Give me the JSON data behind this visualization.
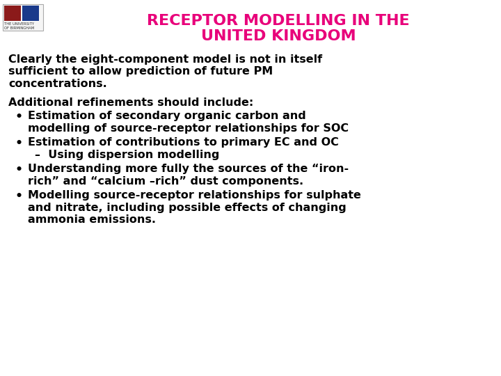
{
  "title_line1": "RECEPTOR MODELLING IN THE",
  "title_line2": "UNITED KINGDOM",
  "title_color": "#E8007A",
  "title_fontsize": 16,
  "background_color": "#FFFFFF",
  "text_color": "#000000",
  "body_fontsize": 11.5,
  "intro_lines": [
    "Clearly the eight-component model is not in itself",
    "sufficient to allow prediction of future PM",
    "concentrations."
  ],
  "subheading": "Additional refinements should include:",
  "bullet_items": [
    [
      "Estimation of secondary organic carbon and",
      "modelling of source-receptor relationships for SOC"
    ],
    [
      "Estimation of contributions to primary EC and OC",
      "–  Using dispersion modelling"
    ],
    [
      "Understanding more fully the sources of the “iron-",
      "rich” and “calcium –rich” dust components."
    ],
    [
      "Modelling source-receptor relationships for sulphate",
      "and nitrate, including possible effects of changing",
      "ammonia emissions."
    ]
  ],
  "indent_sub": true
}
